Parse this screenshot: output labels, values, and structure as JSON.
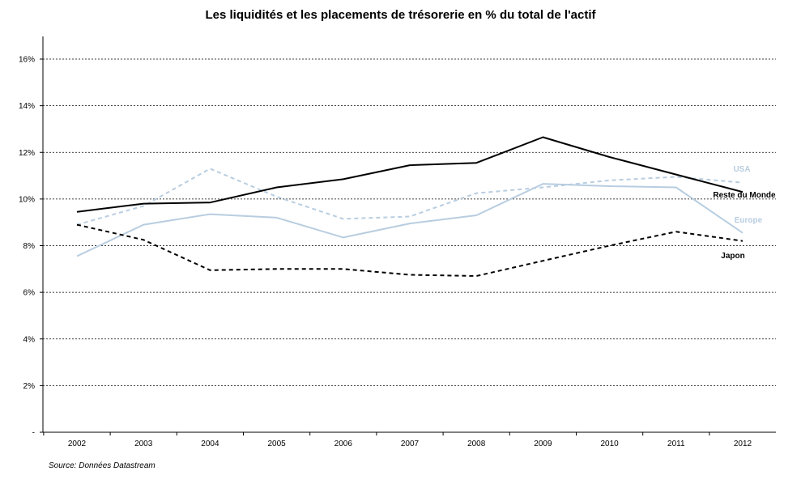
{
  "chart_data": {
    "type": "line",
    "title": "Les liquidités et les placements de trésorerie en % du total de l'actif",
    "xlabel": "",
    "ylabel": "",
    "x": [
      "2002",
      "2003",
      "2004",
      "2005",
      "2006",
      "2007",
      "2008",
      "2009",
      "2010",
      "2011",
      "2012"
    ],
    "ylim": [
      0,
      16
    ],
    "yticks": [
      0,
      2,
      4,
      6,
      8,
      10,
      12,
      14,
      16
    ],
    "ytick_labels": [
      "-",
      "2%",
      "4%",
      "6%",
      "8%",
      "10%",
      "12%",
      "14%",
      "16%"
    ],
    "grid": true,
    "series": [
      {
        "name": "USA",
        "color": "#b8cde0",
        "dashed": true,
        "values": [
          8.9,
          9.7,
          11.3,
          10.1,
          9.15,
          9.25,
          10.25,
          10.5,
          10.8,
          10.95,
          10.7
        ]
      },
      {
        "name": "Reste du Monde",
        "color": "#000000",
        "dashed": false,
        "values": [
          9.45,
          9.8,
          9.85,
          10.5,
          10.85,
          11.45,
          11.55,
          12.65,
          11.8,
          11.05,
          10.3
        ]
      },
      {
        "name": "Europe",
        "color": "#b8cde0",
        "dashed": false,
        "values": [
          7.55,
          8.9,
          9.35,
          9.2,
          8.35,
          8.95,
          9.3,
          10.65,
          10.55,
          10.5,
          8.55
        ]
      },
      {
        "name": "Japon",
        "color": "#000000",
        "dashed": true,
        "values": [
          8.9,
          8.25,
          6.95,
          7.0,
          7.0,
          6.75,
          6.7,
          7.35,
          8.0,
          8.6,
          8.2
        ]
      }
    ]
  },
  "source_note": "Source: Données Datastream"
}
